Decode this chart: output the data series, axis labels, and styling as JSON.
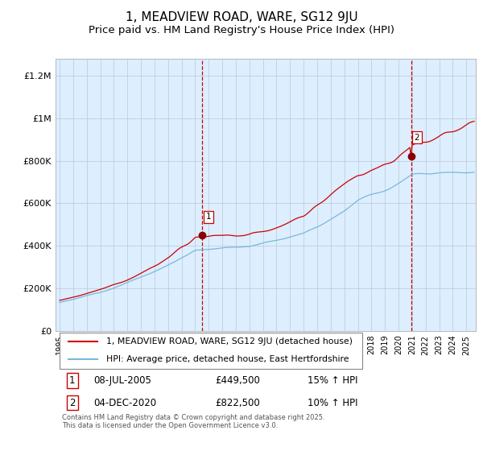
{
  "title": "1, MEADVIEW ROAD, WARE, SG12 9JU",
  "subtitle": "Price paid vs. HM Land Registry's House Price Index (HPI)",
  "title_fontsize": 11,
  "subtitle_fontsize": 9.5,
  "ylabel_ticks": [
    "£0",
    "£200K",
    "£400K",
    "£600K",
    "£800K",
    "£1M",
    "£1.2M"
  ],
  "ytick_values": [
    0,
    200000,
    400000,
    600000,
    800000,
    1000000,
    1200000
  ],
  "ylim": [
    0,
    1280000
  ],
  "xlim_start": 1994.7,
  "xlim_end": 2025.7,
  "line1_color": "#cc0000",
  "line2_color": "#7ab8d8",
  "marker_color": "#880000",
  "vline_color": "#cc0000",
  "bg_color": "#ddeeff",
  "plot_bg": "#ffffff",
  "sale1_x": 2005.52,
  "sale1_y": 449500,
  "sale1_label": "1",
  "sale2_x": 2020.92,
  "sale2_y": 822500,
  "sale2_label": "2",
  "legend_line1": "1, MEADVIEW ROAD, WARE, SG12 9JU (detached house)",
  "legend_line2": "HPI: Average price, detached house, East Hertfordshire",
  "table_rows": [
    {
      "num": "1",
      "date": "08-JUL-2005",
      "price": "£449,500",
      "hpi": "15% ↑ HPI"
    },
    {
      "num": "2",
      "date": "04-DEC-2020",
      "price": "£822,500",
      "hpi": "10% ↑ HPI"
    }
  ],
  "footnote": "Contains HM Land Registry data © Crown copyright and database right 2025.\nThis data is licensed under the Open Government Licence v3.0.",
  "font_family": "DejaVu Sans"
}
